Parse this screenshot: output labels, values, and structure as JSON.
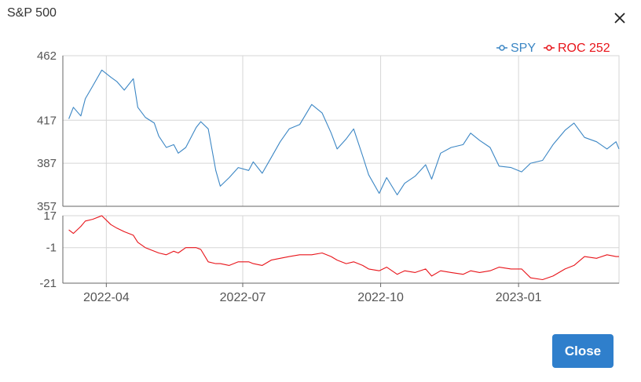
{
  "modal": {
    "title": "S&P 500",
    "close_label": "Close"
  },
  "colors": {
    "spy": "#3b86c4",
    "roc": "#e8141a",
    "grid": "#d6d6d6",
    "axis": "#555555",
    "button": "#2f7fcc"
  },
  "icons": {
    "close": "close-icon"
  },
  "chart_data": {
    "type": "line",
    "x_ticks": [
      "2022-04",
      "2022-07",
      "2022-10",
      "2023-01"
    ],
    "legend": [
      "SPY",
      "ROC 252"
    ],
    "legend_position": "top-right",
    "grid": true,
    "panels": [
      {
        "name": "SPY",
        "ylim": [
          357,
          462
        ],
        "y_ticks": [
          462,
          417,
          387,
          357
        ],
        "series": [
          {
            "name": "SPY",
            "x": [
              "2022-03-07",
              "2022-03-10",
              "2022-03-15",
              "2022-03-18",
              "2022-03-23",
              "2022-03-29",
              "2022-04-04",
              "2022-04-08",
              "2022-04-13",
              "2022-04-19",
              "2022-04-22",
              "2022-04-27",
              "2022-05-03",
              "2022-05-06",
              "2022-05-11",
              "2022-05-16",
              "2022-05-19",
              "2022-05-24",
              "2022-05-31",
              "2022-06-03",
              "2022-06-08",
              "2022-06-13",
              "2022-06-16",
              "2022-06-22",
              "2022-06-28",
              "2022-07-05",
              "2022-07-08",
              "2022-07-14",
              "2022-07-20",
              "2022-07-26",
              "2022-08-01",
              "2022-08-08",
              "2022-08-16",
              "2022-08-23",
              "2022-08-29",
              "2022-09-02",
              "2022-09-08",
              "2022-09-13",
              "2022-09-19",
              "2022-09-23",
              "2022-09-30",
              "2022-10-05",
              "2022-10-12",
              "2022-10-17",
              "2022-10-24",
              "2022-10-31",
              "2022-11-04",
              "2022-11-10",
              "2022-11-17",
              "2022-11-25",
              "2022-11-30",
              "2022-12-06",
              "2022-12-13",
              "2022-12-19",
              "2022-12-27",
              "2023-01-03",
              "2023-01-09",
              "2023-01-17",
              "2023-01-24",
              "2023-02-01",
              "2023-02-07",
              "2023-02-14",
              "2023-02-22",
              "2023-03-01",
              "2023-03-07",
              "2023-03-09"
            ],
            "values": [
              418,
              426,
              420,
              432,
              441,
              452,
              447,
              444,
              438,
              446,
              426,
              419,
              415,
              406,
              398,
              400,
              394,
              398,
              412,
              416,
              411,
              382,
              371,
              377,
              384,
              382,
              388,
              380,
              391,
              402,
              411,
              414,
              428,
              422,
              408,
              397,
              404,
              411,
              392,
              379,
              366,
              377,
              365,
              373,
              378,
              386,
              376,
              394,
              398,
              400,
              408,
              403,
              398,
              385,
              384,
              381,
              387,
              389,
              400,
              410,
              415,
              405,
              402,
              397,
              402,
              397
            ]
          }
        ]
      },
      {
        "name": "ROC 252",
        "ylim": [
          -21,
          17
        ],
        "y_ticks": [
          17,
          -1,
          -21
        ],
        "series": [
          {
            "name": "ROC 252",
            "x": [
              "2022-03-07",
              "2022-03-10",
              "2022-03-15",
              "2022-03-18",
              "2022-03-23",
              "2022-03-29",
              "2022-04-04",
              "2022-04-08",
              "2022-04-13",
              "2022-04-19",
              "2022-04-22",
              "2022-04-27",
              "2022-05-03",
              "2022-05-06",
              "2022-05-11",
              "2022-05-16",
              "2022-05-19",
              "2022-05-24",
              "2022-05-31",
              "2022-06-03",
              "2022-06-08",
              "2022-06-13",
              "2022-06-16",
              "2022-06-22",
              "2022-06-28",
              "2022-07-05",
              "2022-07-08",
              "2022-07-14",
              "2022-07-20",
              "2022-07-26",
              "2022-08-01",
              "2022-08-08",
              "2022-08-16",
              "2022-08-23",
              "2022-08-29",
              "2022-09-02",
              "2022-09-08",
              "2022-09-13",
              "2022-09-19",
              "2022-09-23",
              "2022-09-30",
              "2022-10-05",
              "2022-10-12",
              "2022-10-17",
              "2022-10-24",
              "2022-10-31",
              "2022-11-04",
              "2022-11-10",
              "2022-11-17",
              "2022-11-25",
              "2022-11-30",
              "2022-12-06",
              "2022-12-13",
              "2022-12-19",
              "2022-12-27",
              "2023-01-03",
              "2023-01-09",
              "2023-01-17",
              "2023-01-24",
              "2023-02-01",
              "2023-02-07",
              "2023-02-14",
              "2023-02-22",
              "2023-03-01",
              "2023-03-07",
              "2023-03-09"
            ],
            "values": [
              9,
              7,
              11,
              14,
              15,
              17,
              12,
              10,
              8,
              6,
              2,
              -1,
              -3,
              -4,
              -5,
              -3,
              -4,
              -1,
              -1,
              -2,
              -9,
              -10,
              -10,
              -11,
              -9,
              -9,
              -10,
              -11,
              -8,
              -7,
              -6,
              -5,
              -5,
              -4,
              -6,
              -8,
              -10,
              -9,
              -11,
              -13,
              -14,
              -12,
              -16,
              -14,
              -15,
              -13,
              -17,
              -14,
              -15,
              -16,
              -14,
              -15,
              -14,
              -12,
              -13,
              -13,
              -18,
              -19,
              -17,
              -13,
              -11,
              -6,
              -7,
              -5,
              -6,
              -6
            ]
          }
        ]
      }
    ]
  }
}
